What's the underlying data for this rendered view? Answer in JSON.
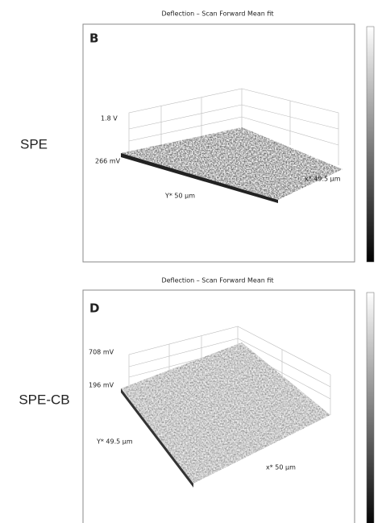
{
  "panels": [
    {
      "letter": "B",
      "side_label": "SPE",
      "title": "Deflection – Scan Forward  Mean fit",
      "z_top": "1.8 V",
      "z_bottom": "266 mV",
      "x_axis": "x* 49.5 µm",
      "y_axis": "Y* 50 µm"
    },
    {
      "letter": "D",
      "side_label": "SPE-CB",
      "title": "Deflection – Scan Forward  Mean fit",
      "z_top": "708 mV",
      "z_bottom": "196 mV",
      "x_axis": "x* 50 µm",
      "y_axis": "Y* 49.5 µm"
    }
  ]
}
